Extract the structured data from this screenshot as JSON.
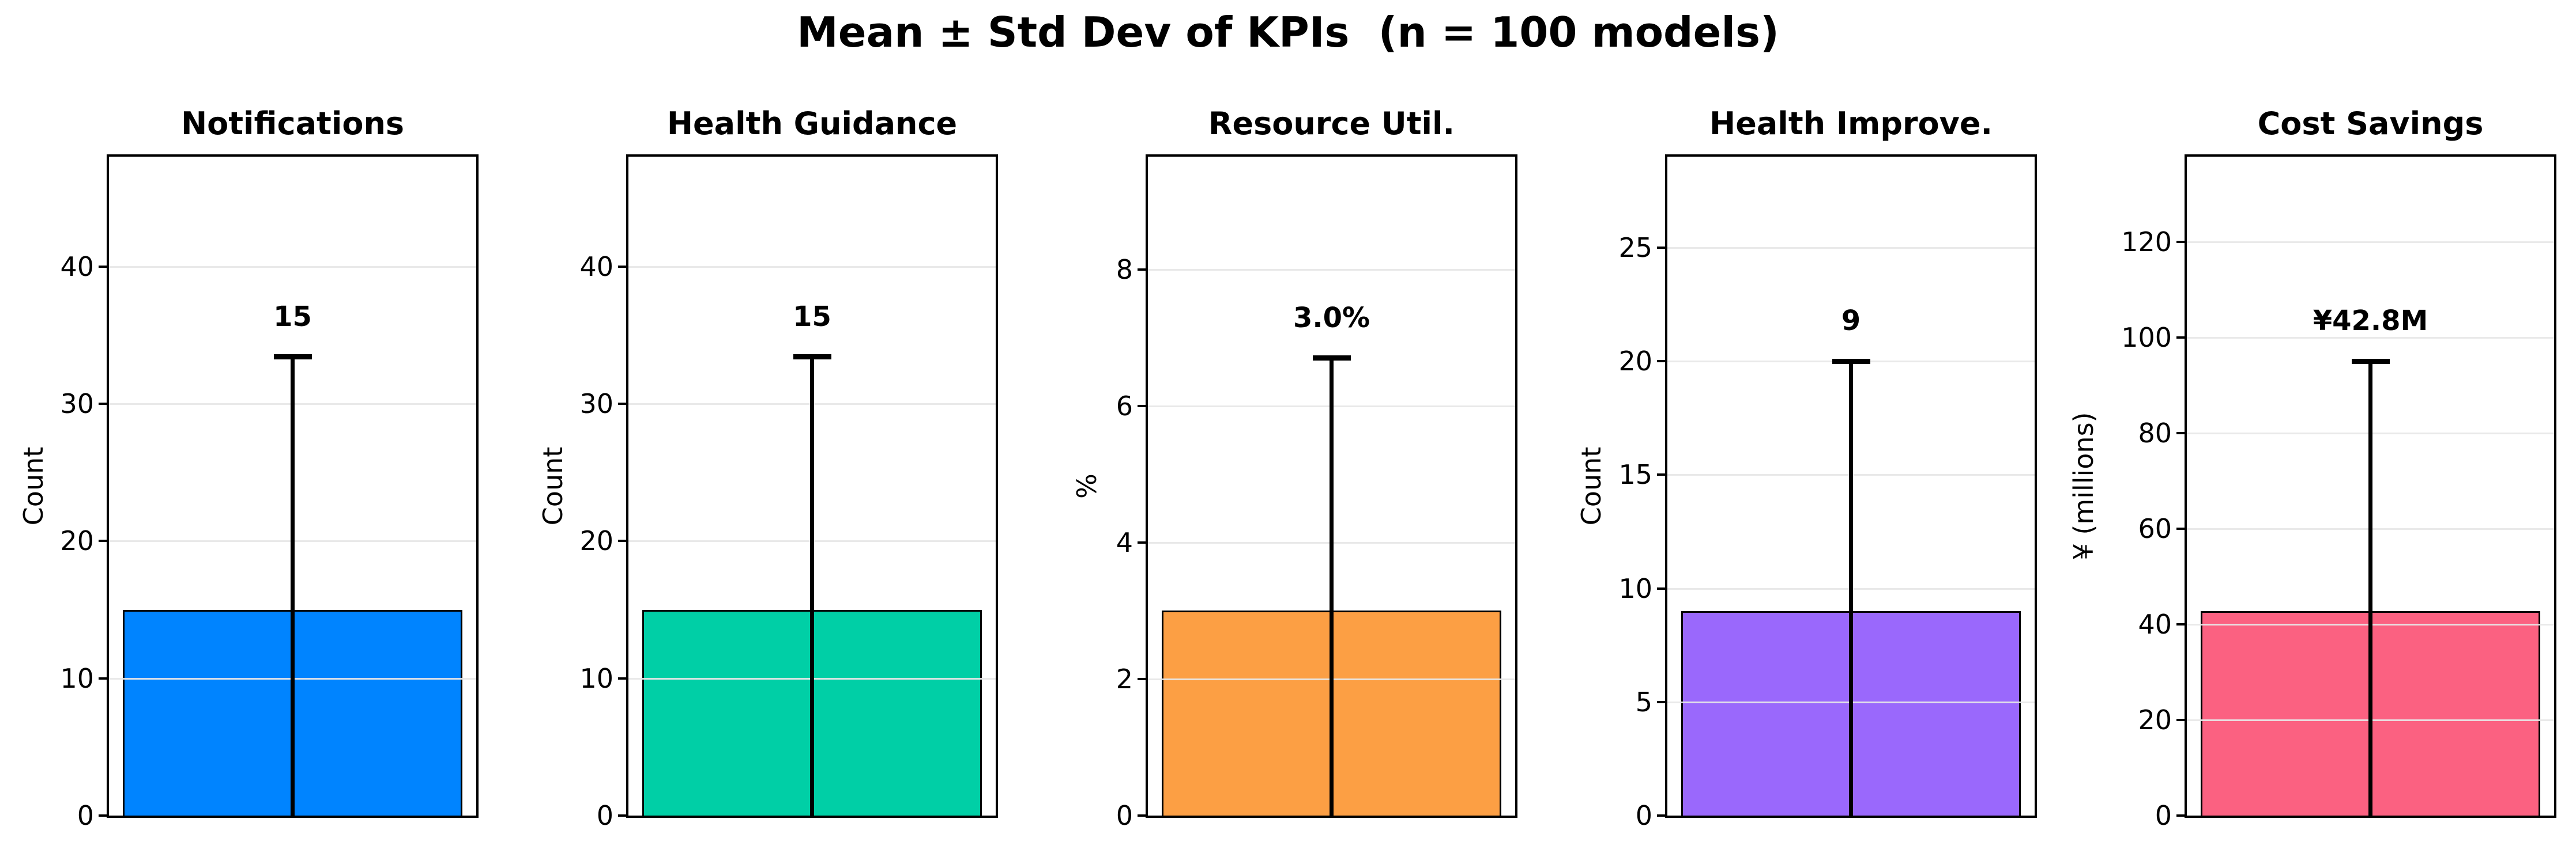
{
  "figure": {
    "title": "Mean ± Std Dev of KPIs  (n = 100 models)",
    "background": "#ffffff",
    "grid_color": "#e7e7e7",
    "spine_color": "#000000"
  },
  "chart_data": {
    "type": "bar",
    "title": "Mean ± Std Dev of KPIs  (n = 100 models)",
    "description": "Five bar subplots, each a single mean bar with a ± std-dev error bar capped at the top; lower error extent is clipped at 0.",
    "grid": "horizontal gridlines on, drawn above bars",
    "legend": "none",
    "subplots": [
      {
        "title": "Notifications",
        "ylabel": "Count",
        "mean": 15,
        "annotation": "15",
        "error_top": 33.4,
        "yticks": [
          0,
          10,
          20,
          30,
          40
        ],
        "ylim": [
          0,
          48
        ],
        "bar_color": "#0084FF"
      },
      {
        "title": "Health Guidance",
        "ylabel": "Count",
        "mean": 15,
        "annotation": "15",
        "error_top": 33.4,
        "yticks": [
          0,
          10,
          20,
          30,
          40
        ],
        "ylim": [
          0,
          48
        ],
        "bar_color": "#00CFA6"
      },
      {
        "title": "Resource Util.",
        "ylabel": "%",
        "mean": 3.0,
        "annotation": "3.0%",
        "error_top": 6.7,
        "yticks": [
          0,
          2,
          4,
          6,
          8
        ],
        "ylim": [
          0,
          9.65
        ],
        "bar_color": "#FC9F44"
      },
      {
        "title": "Health Improve.",
        "ylabel": "Count",
        "mean": 9,
        "annotation": "9",
        "error_top": 20,
        "yticks": [
          0,
          5,
          10,
          15,
          20,
          25
        ],
        "ylim": [
          0,
          29
        ],
        "bar_color": "#9A68FC"
      },
      {
        "title": "Cost Savings",
        "ylabel": "¥ (millions)",
        "mean": 42.8,
        "annotation": "¥42.8M",
        "error_top": 95,
        "yticks": [
          0,
          20,
          40,
          60,
          80,
          100,
          120
        ],
        "ylim": [
          0,
          137.8
        ],
        "bar_color": "#FB6181"
      }
    ]
  }
}
